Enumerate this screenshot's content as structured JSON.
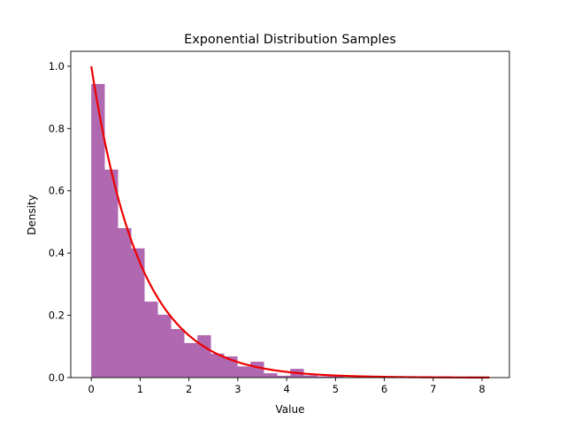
{
  "chart_data": {
    "type": "bar",
    "title": "Exponential Distribution Samples",
    "xlabel": "Value",
    "ylabel": "Density",
    "xlim": [
      -0.42,
      8.56
    ],
    "ylim": [
      0,
      1.048
    ],
    "xticks": [
      "0",
      "1",
      "2",
      "3",
      "4",
      "5",
      "6",
      "7",
      "8"
    ],
    "yticks": [
      "0.0",
      "0.2",
      "0.4",
      "0.6",
      "0.8",
      "1.0"
    ],
    "grid": false,
    "histogram": {
      "bin_start": 0,
      "bin_end": 8.15,
      "values": [
        0.943,
        0.668,
        0.48,
        0.415,
        0.244,
        0.202,
        0.156,
        0.111,
        0.136,
        0.077,
        0.068,
        0.036,
        0.051,
        0.014,
        0.006,
        0.028,
        0.007,
        0.004,
        0.004,
        0,
        0.004,
        0.002,
        0,
        0.002,
        0,
        0,
        0,
        0.001,
        0,
        0.002
      ],
      "color": "#b068b0"
    },
    "curve": {
      "function": "exp(-x)",
      "x_range": [
        0,
        8.15
      ],
      "color": "#ee0000"
    }
  }
}
